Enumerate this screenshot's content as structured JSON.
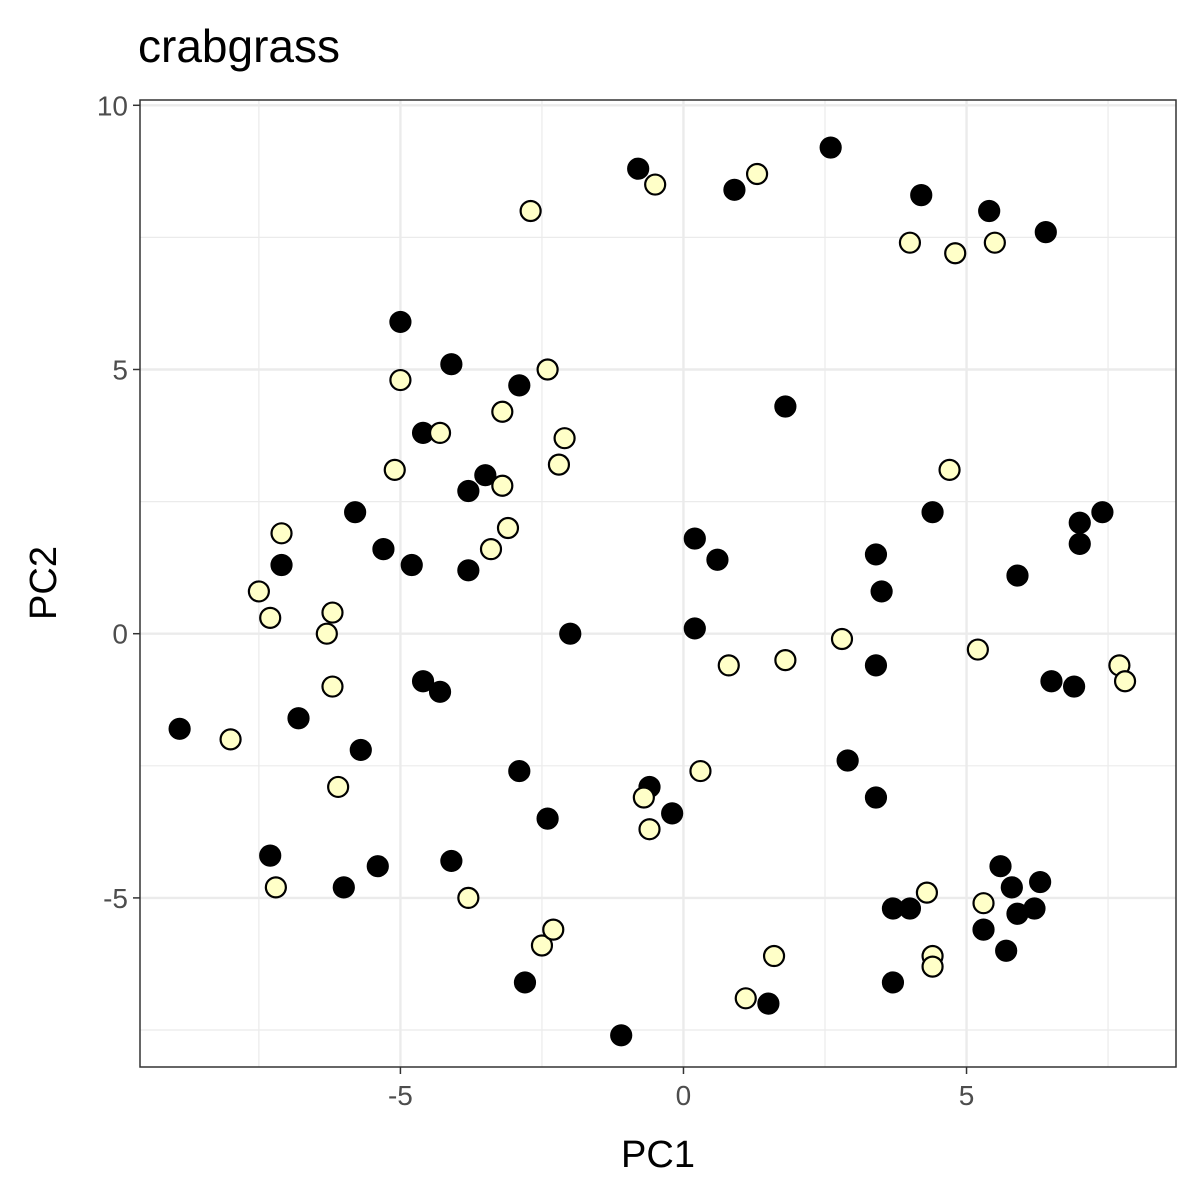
{
  "chart_data": {
    "type": "scatter",
    "title": "crabgrass",
    "xlabel": "PC1",
    "ylabel": "PC2",
    "xlim": [
      -9.6,
      8.7
    ],
    "ylim": [
      -8.2,
      10.1
    ],
    "x_ticks": [
      -5,
      0,
      5
    ],
    "y_ticks": [
      -5,
      0,
      5,
      10
    ],
    "x_tick_labels": [
      "-5",
      "0",
      "5"
    ],
    "y_tick_labels": [
      "-5",
      "0",
      "5",
      "10"
    ],
    "grid": true,
    "legend": "none",
    "series": [
      {
        "color": "#000000",
        "outline": "#000000",
        "points": [
          [
            -0.8,
            8.8
          ],
          [
            0.9,
            8.4
          ],
          [
            2.6,
            9.2
          ],
          [
            4.2,
            8.3
          ],
          [
            5.4,
            8.0
          ],
          [
            6.4,
            7.6
          ],
          [
            -5.0,
            5.9
          ],
          [
            -4.1,
            5.1
          ],
          [
            -2.9,
            4.7
          ],
          [
            1.8,
            4.3
          ],
          [
            -4.6,
            3.8
          ],
          [
            -3.5,
            3.0
          ],
          [
            -3.8,
            2.7
          ],
          [
            -5.8,
            2.3
          ],
          [
            4.4,
            2.3
          ],
          [
            7.4,
            2.3
          ],
          [
            7.0,
            2.1
          ],
          [
            -5.3,
            1.6
          ],
          [
            -4.8,
            1.3
          ],
          [
            -3.8,
            1.2
          ],
          [
            0.2,
            1.8
          ],
          [
            0.6,
            1.4
          ],
          [
            3.4,
            1.5
          ],
          [
            3.5,
            0.8
          ],
          [
            7.0,
            1.7
          ],
          [
            5.9,
            1.1
          ],
          [
            -7.1,
            1.3
          ],
          [
            -2.0,
            0.0
          ],
          [
            0.2,
            0.1
          ],
          [
            -4.6,
            -0.9
          ],
          [
            -4.3,
            -1.1
          ],
          [
            3.4,
            -0.6
          ],
          [
            6.5,
            -0.9
          ],
          [
            6.9,
            -1.0
          ],
          [
            -8.9,
            -1.8
          ],
          [
            -6.8,
            -1.6
          ],
          [
            -5.7,
            -2.2
          ],
          [
            -2.9,
            -2.6
          ],
          [
            2.9,
            -2.4
          ],
          [
            -0.6,
            -2.9
          ],
          [
            -0.2,
            -3.4
          ],
          [
            -2.4,
            -3.5
          ],
          [
            3.4,
            -3.1
          ],
          [
            -7.3,
            -4.2
          ],
          [
            -6.0,
            -4.8
          ],
          [
            -5.4,
            -4.4
          ],
          [
            -4.1,
            -4.3
          ],
          [
            3.7,
            -5.2
          ],
          [
            4.0,
            -5.2
          ],
          [
            5.6,
            -4.4
          ],
          [
            5.8,
            -4.8
          ],
          [
            6.3,
            -4.7
          ],
          [
            5.9,
            -5.3
          ],
          [
            6.2,
            -5.2
          ],
          [
            5.3,
            -5.6
          ],
          [
            5.7,
            -6.0
          ],
          [
            -2.8,
            -6.6
          ],
          [
            3.7,
            -6.6
          ],
          [
            1.5,
            -7.0
          ],
          [
            -1.1,
            -7.6
          ]
        ]
      },
      {
        "color": "#ffffc8",
        "outline": "#000000",
        "points": [
          [
            -2.7,
            8.0
          ],
          [
            -0.5,
            8.5
          ],
          [
            1.3,
            8.7
          ],
          [
            4.0,
            7.4
          ],
          [
            4.8,
            7.2
          ],
          [
            5.5,
            7.4
          ],
          [
            -5.0,
            4.8
          ],
          [
            -2.4,
            5.0
          ],
          [
            -4.3,
            3.8
          ],
          [
            -3.2,
            4.2
          ],
          [
            -2.1,
            3.7
          ],
          [
            -2.2,
            3.2
          ],
          [
            -5.1,
            3.1
          ],
          [
            4.7,
            3.1
          ],
          [
            -3.2,
            2.8
          ],
          [
            -7.1,
            1.9
          ],
          [
            -3.1,
            2.0
          ],
          [
            -3.4,
            1.6
          ],
          [
            -7.5,
            0.8
          ],
          [
            -7.3,
            0.3
          ],
          [
            -6.2,
            0.4
          ],
          [
            -6.3,
            0.0
          ],
          [
            2.8,
            -0.1
          ],
          [
            5.2,
            -0.3
          ],
          [
            -6.2,
            -1.0
          ],
          [
            0.8,
            -0.6
          ],
          [
            1.8,
            -0.5
          ],
          [
            7.7,
            -0.6
          ],
          [
            7.8,
            -0.9
          ],
          [
            -8.0,
            -2.0
          ],
          [
            0.3,
            -2.6
          ],
          [
            -6.1,
            -2.9
          ],
          [
            -0.7,
            -3.1
          ],
          [
            -0.6,
            -3.7
          ],
          [
            -7.2,
            -4.8
          ],
          [
            -3.8,
            -5.0
          ],
          [
            4.3,
            -4.9
          ],
          [
            5.3,
            -5.1
          ],
          [
            -2.5,
            -5.9
          ],
          [
            -2.3,
            -5.6
          ],
          [
            1.6,
            -6.1
          ],
          [
            4.4,
            -6.1
          ],
          [
            4.4,
            -6.3
          ],
          [
            1.1,
            -6.9
          ]
        ]
      }
    ]
  }
}
